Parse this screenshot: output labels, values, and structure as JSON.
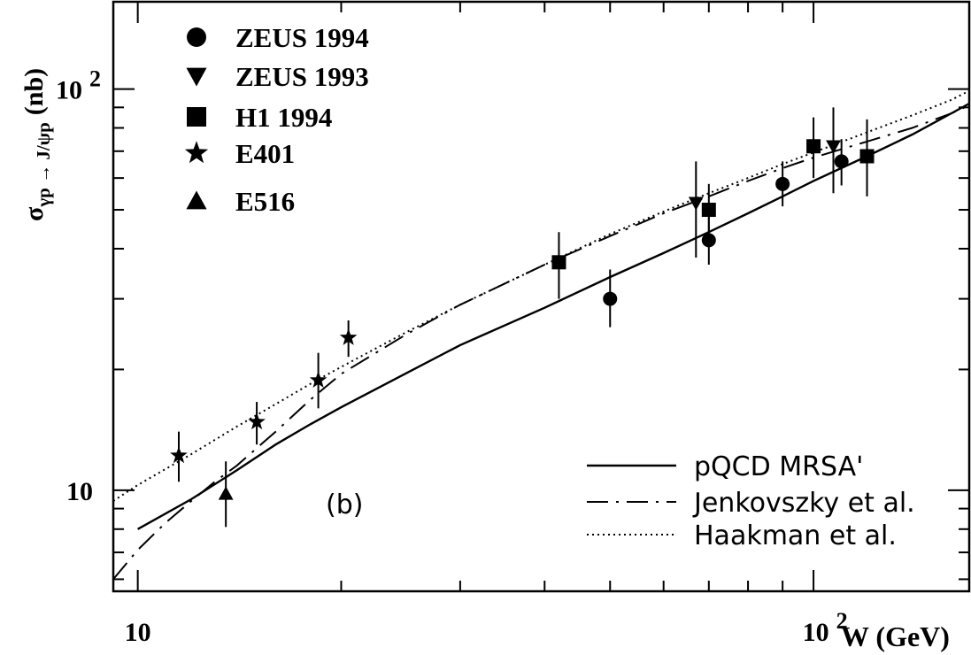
{
  "chart_data": {
    "type": "scatter",
    "panel_label": "(b)",
    "xlabel": "W (GeV)",
    "ylabel": {
      "base": "σ",
      "sub": "γp → J/ψp",
      "unit": "(nb)"
    },
    "x_scale": "log",
    "y_scale": "log",
    "xlim": [
      9.2,
      170
    ],
    "ylim": [
      5.6,
      165
    ],
    "x_ticks": [
      {
        "value": 10,
        "base": "10",
        "exp": ""
      },
      {
        "value": 100,
        "base": "10",
        "exp": "2"
      }
    ],
    "y_ticks": [
      {
        "value": 10,
        "base": "10",
        "exp": ""
      },
      {
        "value": 100,
        "base": "10",
        "exp": "2"
      }
    ],
    "series": [
      {
        "name": "ZEUS 1994",
        "marker": "circle",
        "points": [
          {
            "x": 50,
            "y": 30,
            "ylo": 25.5,
            "yhi": 35.5
          },
          {
            "x": 70,
            "y": 42,
            "ylo": 36.5,
            "yhi": 48
          },
          {
            "x": 90,
            "y": 58,
            "ylo": 51,
            "yhi": 66
          },
          {
            "x": 110,
            "y": 66,
            "ylo": 57.5,
            "yhi": 75
          }
        ]
      },
      {
        "name": "ZEUS 1993",
        "marker": "triangle-down",
        "points": [
          {
            "x": 67,
            "y": 52,
            "ylo": 38,
            "yhi": 66
          },
          {
            "x": 107,
            "y": 72,
            "ylo": 55,
            "yhi": 90
          }
        ]
      },
      {
        "name": "H1 1994",
        "marker": "square",
        "points": [
          {
            "x": 42,
            "y": 37,
            "ylo": 30,
            "yhi": 44
          },
          {
            "x": 70,
            "y": 50,
            "ylo": 42,
            "yhi": 58
          },
          {
            "x": 100,
            "y": 72,
            "ylo": 60,
            "yhi": 85
          },
          {
            "x": 120,
            "y": 68,
            "ylo": 54,
            "yhi": 84
          }
        ]
      },
      {
        "name": "E401",
        "marker": "star",
        "points": [
          {
            "x": 11.5,
            "y": 12.2,
            "ylo": 10.5,
            "yhi": 14.0
          },
          {
            "x": 15,
            "y": 14.8,
            "ylo": 13.0,
            "yhi": 16.6
          },
          {
            "x": 18.5,
            "y": 18.8,
            "ylo": 16.0,
            "yhi": 22.0
          },
          {
            "x": 20.5,
            "y": 24,
            "ylo": 21.5,
            "yhi": 26.5
          }
        ]
      },
      {
        "name": "E516",
        "marker": "triangle-up",
        "points": [
          {
            "x": 13.5,
            "y": 9.8,
            "ylo": 8.1,
            "yhi": 11.8
          }
        ]
      }
    ],
    "curves": [
      {
        "name": "pQCD MRSA'",
        "style": "solid",
        "x": [
          10,
          12,
          14,
          16,
          18,
          20,
          25,
          30,
          40,
          50,
          60,
          70,
          80,
          90,
          100,
          120,
          140,
          160,
          170
        ],
        "y": [
          8.0,
          9.5,
          11.2,
          13.0,
          14.6,
          16.1,
          19.6,
          23.0,
          28.5,
          34.0,
          39.0,
          44.0,
          49.0,
          54.0,
          59.0,
          68.0,
          77.0,
          87.0,
          92.0
        ]
      },
      {
        "name": "Jenkovszky et al.",
        "style": "dashdot",
        "x": [
          9.2,
          10,
          11,
          12,
          13,
          14,
          16,
          18,
          20,
          25,
          30,
          40,
          50,
          60,
          70,
          80,
          90,
          100,
          120,
          140,
          160,
          170
        ],
        "y": [
          6.0,
          7.1,
          8.3,
          9.4,
          10.5,
          11.5,
          14.0,
          16.8,
          19.5,
          24.5,
          29.0,
          36.5,
          43.0,
          49.0,
          54.0,
          59.0,
          63.5,
          67.5,
          74.0,
          80.0,
          87.0,
          91.0
        ]
      },
      {
        "name": "Haakman et al.",
        "style": "dotted",
        "x": [
          9.2,
          10,
          12,
          14,
          16,
          18,
          20,
          25,
          30,
          40,
          50,
          60,
          70,
          80,
          90,
          100,
          120,
          140,
          160,
          170
        ],
        "y": [
          9.4,
          10.3,
          12.3,
          14.4,
          16.4,
          18.4,
          20.3,
          24.8,
          29.0,
          36.5,
          43.5,
          49.5,
          55.0,
          60.0,
          65.0,
          69.5,
          78.0,
          86.0,
          94.0,
          99.0
        ]
      }
    ]
  }
}
